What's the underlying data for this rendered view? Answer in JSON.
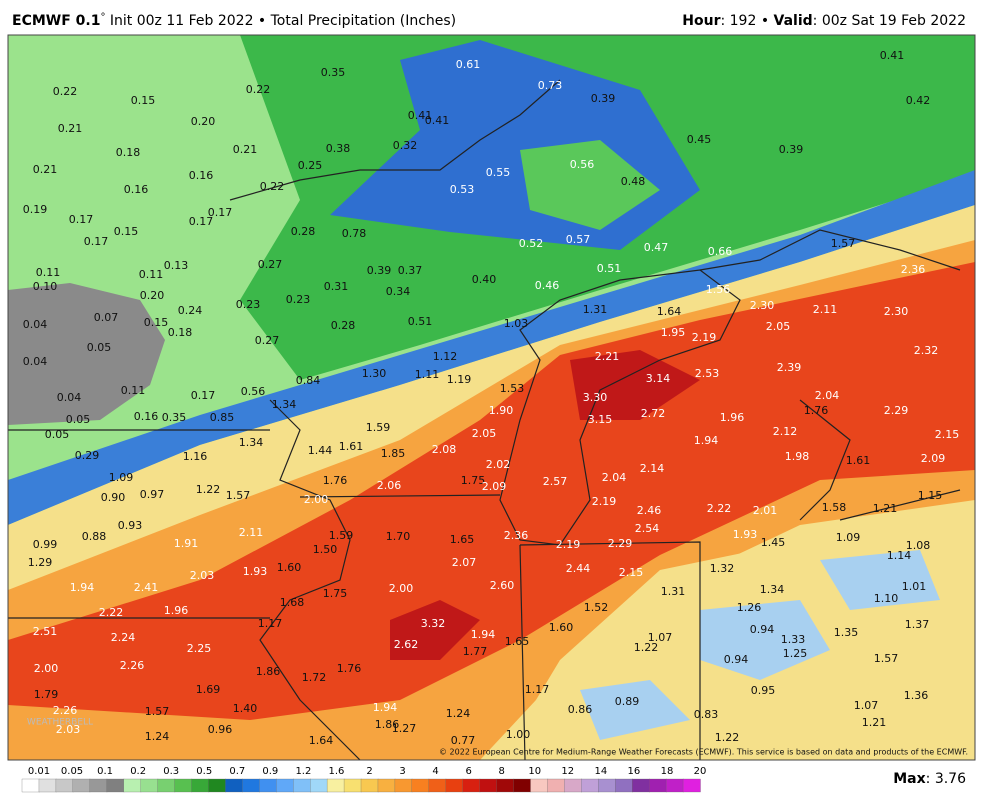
{
  "header": {
    "model": "ECMWF 0.1",
    "degree": "°",
    "run": " Init 00z 11 Feb 2022 • Total Precipitation (Inches)",
    "hour_key": "Hour",
    "hour_val": ": 192 • ",
    "valid_key": "Valid",
    "valid_val": ": 00z Sat 19 Feb 2022"
  },
  "map": {
    "labels": [
      "0.22",
      "0.35",
      "0.61",
      "0.73",
      "0.39",
      "0.41",
      "0.42",
      "0.15",
      "0.20",
      "0.22",
      "0.41",
      "0.41",
      "0.21",
      "0.18",
      "0.21",
      "0.38",
      "0.32",
      "0.56",
      "0.45",
      "0.39",
      "0.21",
      "0.16",
      "0.16",
      "0.25",
      "0.55",
      "0.48",
      "0.22",
      "0.19",
      "0.17",
      "0.15",
      "0.17",
      "0.17",
      "0.53",
      "0.17",
      "0.28",
      "0.78",
      "0.52",
      "0.57",
      "0.47",
      "0.66",
      "1.57",
      "0.11",
      "0.11",
      "0.13",
      "0.27",
      "0.39",
      "0.37",
      "0.40",
      "0.51",
      "2.36",
      "0.10",
      "0.20",
      "0.31",
      "0.34",
      "0.46",
      "1.56",
      "1.31",
      "2.30",
      "2.11",
      "2.30",
      "0.04",
      "0.07",
      "0.15",
      "0.18",
      "0.24",
      "0.23",
      "0.23",
      "0.28",
      "0.51",
      "1.03",
      "1.64",
      "1.95",
      "2.19",
      "2.05",
      "0.05",
      "0.27",
      "1.12",
      "2.21",
      "2.32",
      "0.04",
      "0.84",
      "1.30",
      "1.11",
      "1.19",
      "3.14",
      "2.53",
      "2.39",
      "0.04",
      "0.11",
      "0.17",
      "0.56",
      "1.53",
      "3.30",
      "2.04",
      "0.05",
      "0.16",
      "0.35",
      "0.85",
      "1.34",
      "1.90",
      "3.15",
      "2.72",
      "1.96",
      "1.76",
      "2.29",
      "0.05",
      "1.59",
      "2.05",
      "2.12",
      "2.15",
      "1.94",
      "0.29",
      "1.16",
      "1.34",
      "1.44",
      "1.61",
      "1.85",
      "2.08",
      "2.02",
      "1.98",
      "1.61",
      "2.09",
      "1.09",
      "1.76",
      "2.06",
      "1.75",
      "2.09",
      "2.57",
      "2.04",
      "2.14",
      "0.90",
      "0.97",
      "1.22",
      "1.57",
      "2.00",
      "2.19",
      "1.15",
      "0.93",
      "2.46",
      "2.22",
      "2.01",
      "1.58",
      "1.21",
      "0.99",
      "0.88",
      "1.91",
      "2.11",
      "1.59",
      "1.70",
      "1.65",
      "2.36",
      "2.19",
      "2.29",
      "2.54",
      "1.93",
      "1.45",
      "1.09",
      "1.08",
      "1.29",
      "1.50",
      "2.07",
      "1.14",
      "1.94",
      "2.41",
      "2.03",
      "1.93",
      "1.60",
      "2.44",
      "2.15",
      "1.32",
      "2.22",
      "1.96",
      "1.75",
      "2.00",
      "2.60",
      "1.31",
      "1.34",
      "1.10",
      "1.01",
      "1.68",
      "1.52",
      "1.26",
      "2.51",
      "2.24",
      "3.32",
      "1.60",
      "0.94",
      "1.35",
      "1.37",
      "1.17",
      "2.25",
      "2.62",
      "1.94",
      "1.65",
      "1.07",
      "1.22",
      "1.33",
      "1.77",
      "0.94",
      "1.25",
      "1.57",
      "2.00",
      "2.26",
      "1.76",
      "1.72",
      "1.86",
      "1.69",
      "1.17",
      "0.95",
      "1.36",
      "1.79",
      "1.57",
      "1.40",
      "1.94",
      "0.86",
      "0.89",
      "1.07",
      "2.26",
      "2.03",
      "0.96",
      "1.86",
      "1.27",
      "1.24",
      "0.83",
      "1.21",
      "1.24",
      "1.64",
      "1.00",
      "1.22",
      "0.77"
    ],
    "watermark": "WEATHERBELL",
    "copyright": "© 2022 European Centre for Medium-Range Weather Forecasts (ECMWF). This service is based on data and products of the ECMWF."
  },
  "colorbar": {
    "labels": [
      "0.01",
      "0.05",
      "0.1",
      "0.2",
      "0.3",
      "0.5",
      "0.7",
      "0.9",
      "1.2",
      "1.6",
      "2",
      "3",
      "4",
      "6",
      "8",
      "10",
      "12",
      "14",
      "16",
      "18",
      "20"
    ]
  },
  "max": {
    "key": "Max",
    "value": ": 3.76"
  }
}
